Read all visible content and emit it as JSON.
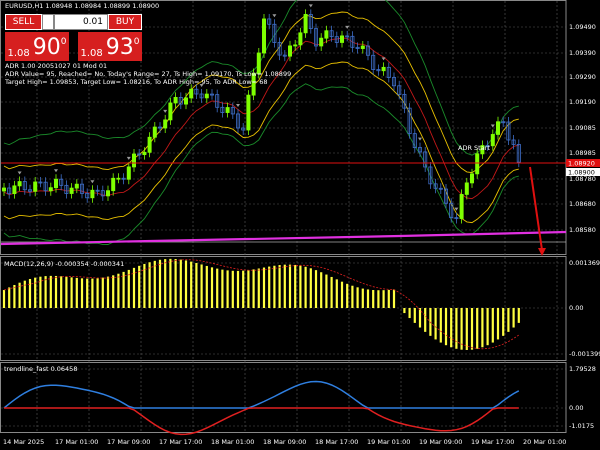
{
  "header": {
    "symbol_line": "EURUSD,H1  1.08948 1.08984 1.08899 1.08900"
  },
  "trade_panel": {
    "sell_label": "SELL",
    "buy_label": "BUY",
    "lot_value": "0.01",
    "sell_small": "1.08",
    "sell_big": "90",
    "sell_sup": "0",
    "buy_small": "1.08",
    "buy_big": "93",
    "buy_sup": "0"
  },
  "info_lines": [
    "ADR 1.00 20051027 01 Mod 01",
    "ADR Value= 95, Reached= No, Today's Range= 27, Ts High= 1.09170, Ts Low= 1.08899",
    "Target High= 1.09853, Target Low= 1.08216, To ADR High= 95, To ADR Low= 68"
  ],
  "adr_start_label": "ADR Start",
  "price_axis": [
    "1.09490",
    "1.09390",
    "1.09290",
    "1.09190",
    "1.09085",
    "1.08985",
    "1.08780",
    "1.08680",
    "1.08580"
  ],
  "price_tags": {
    "upper": "1.08920",
    "current": "1.08900"
  },
  "macd": {
    "label": "MACD(12,26,9) -0.000354 -0.000341",
    "axis": [
      "0.001369",
      "0.00",
      "-0.001399"
    ]
  },
  "trendline": {
    "label": "trendline_fast 0.06458",
    "axis": [
      "1.79528",
      "0.00",
      "-1.0175"
    ]
  },
  "time_axis": [
    "14 Mar 2025",
    "17 Mar 01:00",
    "17 Mar 09:00",
    "17 Mar 17:00",
    "18 Mar 01:00",
    "18 Mar 09:00",
    "18 Mar 17:00",
    "19 Mar 01:00",
    "19 Mar 09:00",
    "19 Mar 17:00",
    "20 Mar 01:00"
  ],
  "colors": {
    "bull_candle": "#7fff00",
    "bear_candle": "#3f6fc9",
    "macd_bar": "#ffff40",
    "price_tag": "#e01010",
    "envelope": "#e8c000",
    "band_green": "#1a8a2a",
    "adr_line": "#e030e0",
    "blue_line": "#2f7fe0",
    "red_line": "#e02020"
  }
}
